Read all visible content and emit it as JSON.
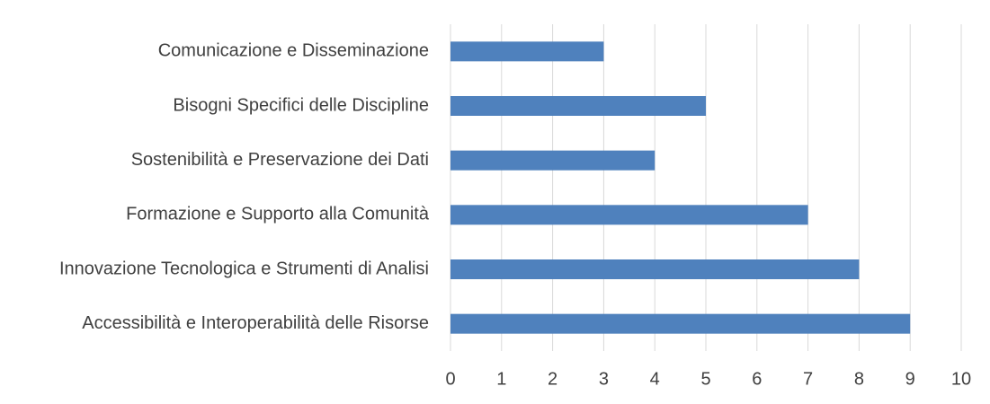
{
  "chart_data": {
    "type": "bar",
    "orientation": "horizontal",
    "categories": [
      "Comunicazione e Disseminazione",
      "Bisogni Specifici delle Discipline",
      "Sostenibilità e Preservazione dei Dati",
      "Formazione e Supporto alla Comunità",
      "Innovazione Tecnologica e Strumenti di Analisi",
      "Accessibilità e Interoperabilità delle Risorse"
    ],
    "values": [
      3,
      5,
      4,
      7,
      8,
      9
    ],
    "color": "#4f81bd",
    "xlim": [
      0,
      10
    ],
    "xticks": [
      0,
      1,
      2,
      3,
      4,
      5,
      6,
      7,
      8,
      9,
      10
    ],
    "grid": true
  }
}
